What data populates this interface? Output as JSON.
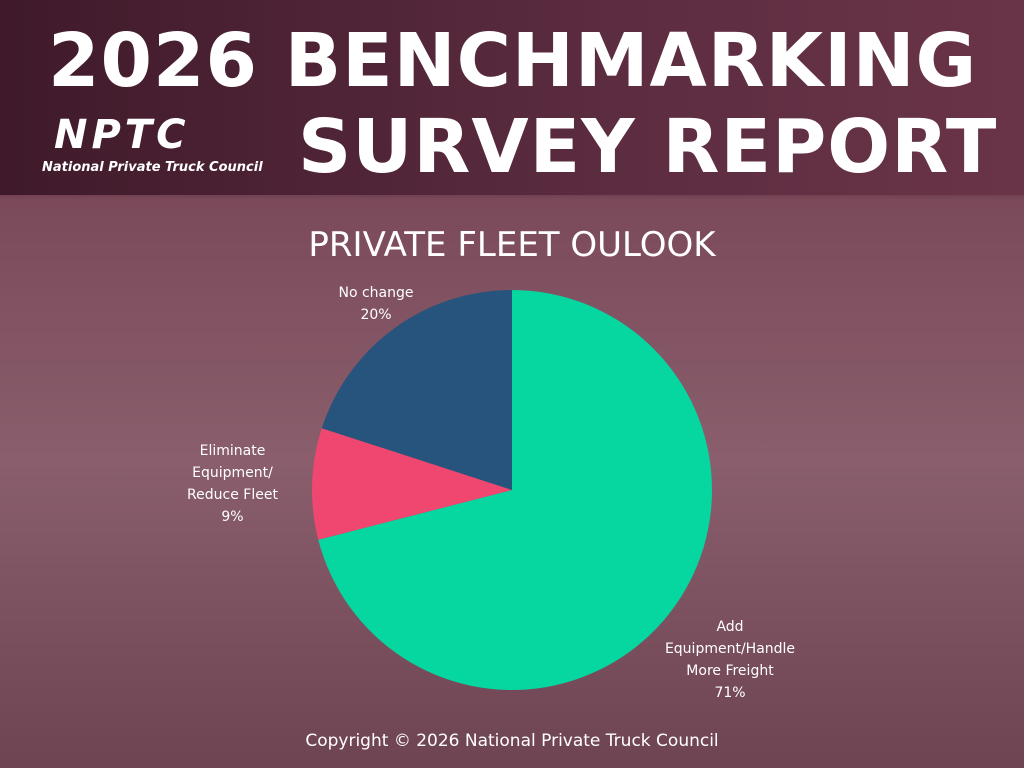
{
  "header": {
    "title_line1": "2026 BENCHMARKING",
    "title_line2": "SURVEY REPORT",
    "logo_mark": "NPTC",
    "logo_name": "National Private Truck Council"
  },
  "chart_data": {
    "type": "pie",
    "title": "PRIVATE FLEET OULOOK",
    "categories": [
      "Add Equipment/Handle More Freight",
      "Eliminate Equipment/ Reduce Fleet",
      "No change"
    ],
    "values": [
      71,
      9,
      20
    ],
    "value_labels": [
      "71%",
      "9%",
      "20%"
    ],
    "colors": [
      "#06d6a0",
      "#ef476f",
      "#26547c"
    ]
  },
  "footer": {
    "copyright": "Copyright © 2026 National Private Truck Council"
  }
}
